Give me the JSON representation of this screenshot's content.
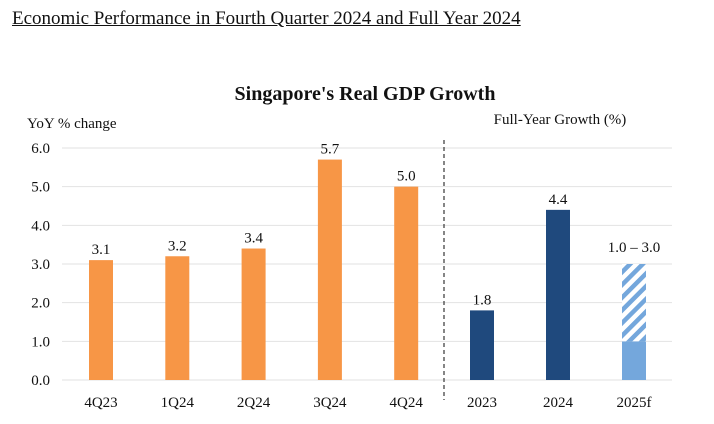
{
  "page_title": "Economic Performance in Fourth Quarter 2024 and Full Year 2024",
  "chart_data": [
    {
      "type": "bar",
      "title": "Singapore's Real GDP Growth",
      "ylabel": "YoY % change",
      "ylim": [
        0,
        6
      ],
      "yticks": [
        "0.0",
        "1.0",
        "2.0",
        "3.0",
        "4.0",
        "5.0",
        "6.0"
      ],
      "grid": true,
      "categories": [
        "4Q23",
        "1Q24",
        "2Q24",
        "3Q24",
        "4Q24"
      ],
      "values": [
        3.1,
        3.2,
        3.4,
        5.7,
        5.0
      ],
      "data_labels": [
        "3.1",
        "3.2",
        "3.4",
        "5.7",
        "5.0"
      ],
      "color": "#F79646"
    },
    {
      "type": "bar",
      "title": "Full-Year Growth (%)",
      "ylim": [
        0,
        6
      ],
      "categories": [
        "2023",
        "2024",
        "2025f"
      ],
      "values": [
        1.8,
        4.4,
        null
      ],
      "range_forecast": {
        "category": "2025f",
        "low": 1.0,
        "high": 3.0
      },
      "data_labels": [
        "1.8",
        "4.4",
        "1.0 – 3.0"
      ],
      "colors": {
        "actual": "#1F497D",
        "forecast": "#74A7DC"
      }
    }
  ]
}
